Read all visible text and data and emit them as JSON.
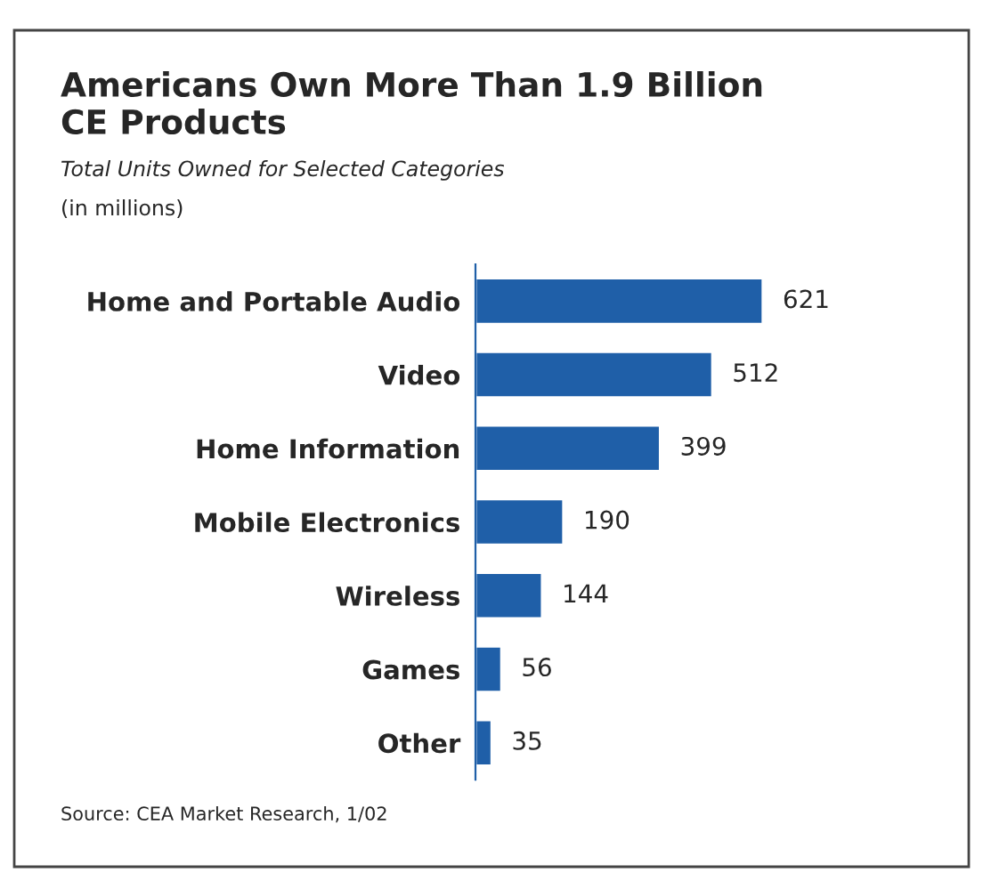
{
  "chart_data": {
    "type": "bar",
    "orientation": "horizontal",
    "data_labels": true,
    "title": "Americans Own More Than 1.9 Billion\nCE Products",
    "subtitle": "Total Units Owned for Selected Categories",
    "annotations": [
      "(in millions)",
      "Source: CEA Market Research, 1/02"
    ],
    "categories": [
      "Home and Portable Audio",
      "Video",
      "Home Information",
      "Mobile Electronics",
      "Wireless",
      "Games",
      "Other"
    ],
    "values": [
      621,
      512,
      399,
      190,
      144,
      56,
      35
    ],
    "color": "#1f5fa8"
  }
}
